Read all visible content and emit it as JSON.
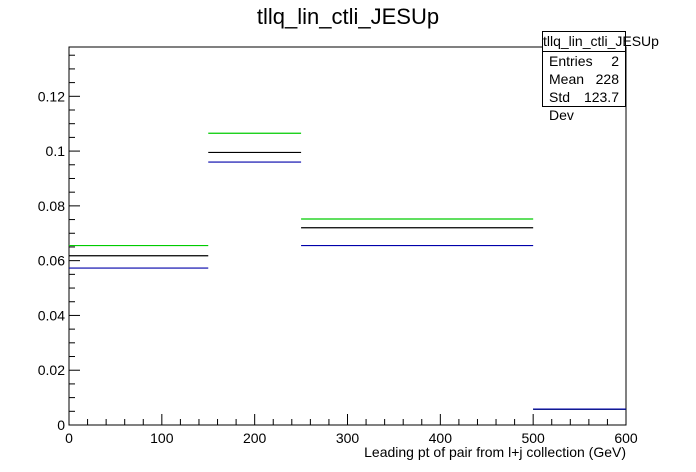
{
  "chart_data": {
    "type": "histogram",
    "title": "tllq_lin_ctli_JESUp",
    "xlabel": "Leading pt of pair from l+j collection (GeV)",
    "ylabel": "",
    "xlim": [
      0,
      600
    ],
    "ylim": [
      0,
      0.138
    ],
    "x_ticks": [
      "0",
      "100",
      "200",
      "300",
      "400",
      "500",
      "600"
    ],
    "y_ticks": [
      "0",
      "0.02",
      "0.04",
      "0.06",
      "0.08",
      "0.1",
      "0.12"
    ],
    "bin_edges": [
      0,
      150,
      250,
      500,
      600
    ],
    "series": [
      {
        "color": "#00cc00",
        "values": [
          0.0655,
          0.1065,
          0.0752,
          0.0058
        ]
      },
      {
        "color": "#000000",
        "values": [
          0.0618,
          0.0995,
          0.072,
          0.0058
        ]
      },
      {
        "color": "#0000aa",
        "values": [
          0.0573,
          0.096,
          0.0655,
          0.0058
        ]
      }
    ]
  },
  "stats": {
    "name": "tllq_lin_ctli_JESUp",
    "rows": [
      {
        "label": "Entries",
        "value": "2"
      },
      {
        "label": "Mean",
        "value": "228"
      },
      {
        "label": "Std Dev",
        "value": "123.7"
      }
    ]
  }
}
